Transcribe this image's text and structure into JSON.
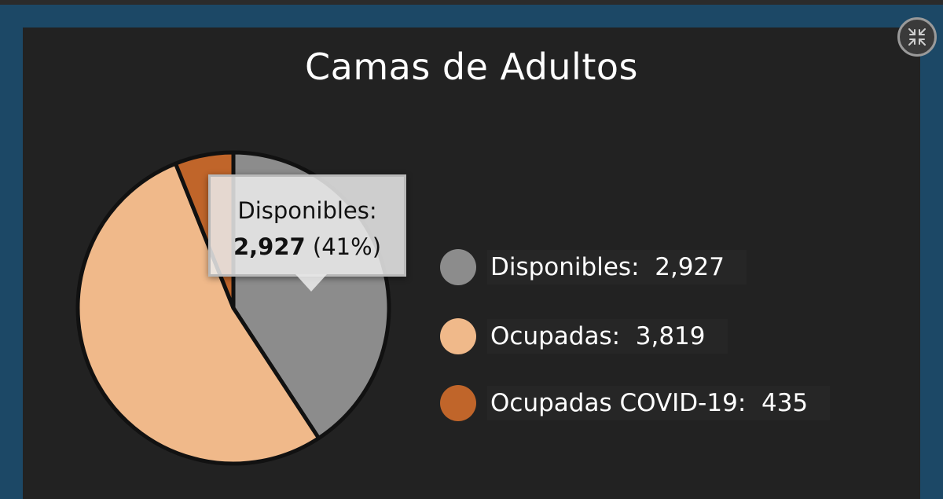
{
  "dashboard": {
    "expand_icon": "collapse-arrows-icon"
  },
  "colors": {
    "disponibles": "#8c8c8c",
    "ocupadas": "#f0b98a",
    "covid": "#c0652a",
    "panel": "#222222",
    "frame": "#1c4866"
  },
  "chart_data": {
    "type": "pie",
    "title": "Camas de Adultos",
    "series": [
      {
        "name": "Disponibles",
        "value": 2927,
        "label": "2,927"
      },
      {
        "name": "Ocupadas",
        "value": 3819,
        "label": "3,819"
      },
      {
        "name": "Ocupadas COVID-19",
        "value": 435,
        "label": "435"
      }
    ],
    "legend_placement": "right",
    "tooltip": {
      "title": "Disponibles:",
      "value": "2,927",
      "percent": "(41%)"
    }
  }
}
